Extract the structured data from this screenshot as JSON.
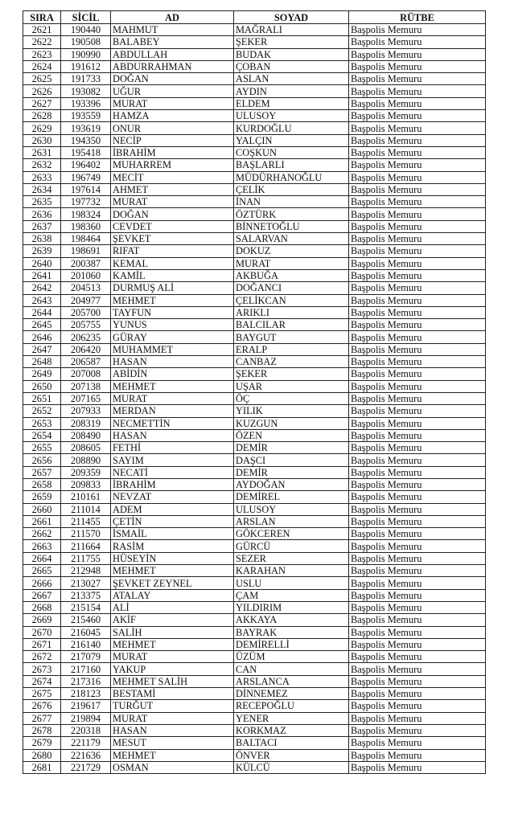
{
  "headers": [
    "SIRA",
    "SİCİL",
    "AD",
    "SOYAD",
    "RÜTBE"
  ],
  "rows": [
    [
      "2621",
      "190440",
      "MAHMUT",
      "MAĞRALI",
      "Başpolis Memuru"
    ],
    [
      "2622",
      "190508",
      "BALABEY",
      "ŞEKER",
      "Başpolis Memuru"
    ],
    [
      "2623",
      "190990",
      "ABDULLAH",
      "BUDAK",
      "Başpolis Memuru"
    ],
    [
      "2624",
      "191612",
      "ABDURRAHMAN",
      "ÇOBAN",
      "Başpolis Memuru"
    ],
    [
      "2625",
      "191733",
      "DOĞAN",
      "ASLAN",
      "Başpolis Memuru"
    ],
    [
      "2626",
      "193082",
      "UĞUR",
      "AYDIN",
      "Başpolis Memuru"
    ],
    [
      "2627",
      "193396",
      "MURAT",
      "ELDEM",
      "Başpolis Memuru"
    ],
    [
      "2628",
      "193559",
      "HAMZA",
      "ULUSOY",
      "Başpolis Memuru"
    ],
    [
      "2629",
      "193619",
      "ONUR",
      "KURDOĞLU",
      "Başpolis Memuru"
    ],
    [
      "2630",
      "194350",
      "NECİP",
      "YALÇIN",
      "Başpolis Memuru"
    ],
    [
      "2631",
      "195418",
      "İBRAHİM",
      "COŞKUN",
      "Başpolis Memuru"
    ],
    [
      "2632",
      "196402",
      "MUHARREM",
      "BAŞLARLI",
      "Başpolis Memuru"
    ],
    [
      "2633",
      "196749",
      "MECİT",
      "MÜDÜRHANOĞLU",
      "Başpolis Memuru"
    ],
    [
      "2634",
      "197614",
      "AHMET",
      "ÇELİK",
      "Başpolis Memuru"
    ],
    [
      "2635",
      "197732",
      "MURAT",
      "İNAN",
      "Başpolis Memuru"
    ],
    [
      "2636",
      "198324",
      "DOĞAN",
      "ÖZTÜRK",
      "Başpolis Memuru"
    ],
    [
      "2637",
      "198360",
      "CEVDET",
      "BİNNETOĞLU",
      "Başpolis Memuru"
    ],
    [
      "2638",
      "198464",
      "ŞEVKET",
      "SALARVAN",
      "Başpolis Memuru"
    ],
    [
      "2639",
      "198691",
      "RIFAT",
      "DOKUZ",
      "Başpolis Memuru"
    ],
    [
      "2640",
      "200387",
      "KEMAL",
      "MURAT",
      "Başpolis Memuru"
    ],
    [
      "2641",
      "201060",
      "KAMİL",
      "AKBUĞA",
      "Başpolis Memuru"
    ],
    [
      "2642",
      "204513",
      "DURMUŞ ALİ",
      "DOĞANCI",
      "Başpolis Memuru"
    ],
    [
      "2643",
      "204977",
      "MEHMET",
      "ÇELİKCAN",
      "Başpolis Memuru"
    ],
    [
      "2644",
      "205700",
      "TAYFUN",
      "ARIKLI",
      "Başpolis Memuru"
    ],
    [
      "2645",
      "205755",
      "YUNUS",
      "BALCILAR",
      "Başpolis Memuru"
    ],
    [
      "2646",
      "206235",
      "GÜRAY",
      "BAYGUT",
      "Başpolis Memuru"
    ],
    [
      "2647",
      "206420",
      "MUHAMMET",
      "ERALP",
      "Başpolis Memuru"
    ],
    [
      "2648",
      "206587",
      "HASAN",
      "CANBAZ",
      "Başpolis Memuru"
    ],
    [
      "2649",
      "207008",
      "ABİDİN",
      "ŞEKER",
      "Başpolis Memuru"
    ],
    [
      "2650",
      "207138",
      "MEHMET",
      "UŞAR",
      "Başpolis Memuru"
    ],
    [
      "2651",
      "207165",
      "MURAT",
      "ÖÇ",
      "Başpolis Memuru"
    ],
    [
      "2652",
      "207933",
      "MERDAN",
      "YILIK",
      "Başpolis Memuru"
    ],
    [
      "2653",
      "208319",
      "NECMETTİN",
      "KUZGUN",
      "Başpolis Memuru"
    ],
    [
      "2654",
      "208490",
      "HASAN",
      "ÖZEN",
      "Başpolis Memuru"
    ],
    [
      "2655",
      "208605",
      "FETHİ",
      "DEMİR",
      "Başpolis Memuru"
    ],
    [
      "2656",
      "208890",
      "SAYIM",
      "DAŞCI",
      "Başpolis Memuru"
    ],
    [
      "2657",
      "209359",
      "NECATİ",
      "DEMİR",
      "Başpolis Memuru"
    ],
    [
      "2658",
      "209833",
      "İBRAHİM",
      "AYDOĞAN",
      "Başpolis Memuru"
    ],
    [
      "2659",
      "210161",
      "NEVZAT",
      "DEMİREL",
      "Başpolis Memuru"
    ],
    [
      "2660",
      "211014",
      "ADEM",
      "ULUSOY",
      "Başpolis Memuru"
    ],
    [
      "2661",
      "211455",
      "ÇETİN",
      "ARSLAN",
      "Başpolis Memuru"
    ],
    [
      "2662",
      "211570",
      "İSMAİL",
      "GÖKCEREN",
      "Başpolis Memuru"
    ],
    [
      "2663",
      "211664",
      "RASİM",
      "GÜRCÜ",
      "Başpolis Memuru"
    ],
    [
      "2664",
      "211755",
      "HÜSEYİN",
      "SEZER",
      "Başpolis Memuru"
    ],
    [
      "2665",
      "212948",
      "MEHMET",
      "KARAHAN",
      "Başpolis Memuru"
    ],
    [
      "2666",
      "213027",
      "ŞEVKET ZEYNEL",
      "USLU",
      "Başpolis Memuru"
    ],
    [
      "2667",
      "213375",
      "ATALAY",
      "ÇAM",
      "Başpolis Memuru"
    ],
    [
      "2668",
      "215154",
      "ALİ",
      "YILDIRIM",
      "Başpolis Memuru"
    ],
    [
      "2669",
      "215460",
      "AKİF",
      "AKKAYA",
      "Başpolis Memuru"
    ],
    [
      "2670",
      "216045",
      "SALİH",
      "BAYRAK",
      "Başpolis Memuru"
    ],
    [
      "2671",
      "216140",
      "MEHMET",
      "DEMİRELLİ",
      "Başpolis Memuru"
    ],
    [
      "2672",
      "217079",
      "MURAT",
      "ÜZÜM",
      "Başpolis Memuru"
    ],
    [
      "2673",
      "217160",
      "YAKUP",
      "CAN",
      "Başpolis Memuru"
    ],
    [
      "2674",
      "217316",
      "MEHMET SALİH",
      "ARSLANCA",
      "Başpolis Memuru"
    ],
    [
      "2675",
      "218123",
      "BESTAMİ",
      "DİNNEMEZ",
      "Başpolis Memuru"
    ],
    [
      "2676",
      "219617",
      "TURĞUT",
      "RECEPOĞLU",
      "Başpolis Memuru"
    ],
    [
      "2677",
      "219894",
      "MURAT",
      "YENER",
      "Başpolis Memuru"
    ],
    [
      "2678",
      "220318",
      "HASAN",
      "KORKMAZ",
      "Başpolis Memuru"
    ],
    [
      "2679",
      "221179",
      "MESUT",
      "BALTACI",
      "Başpolis Memuru"
    ],
    [
      "2680",
      "221636",
      "MEHMET",
      "ÖNVER",
      "Başpolis Memuru"
    ],
    [
      "2681",
      "221729",
      "OSMAN",
      "KÜLCÜ",
      "Başpolis Memuru"
    ]
  ]
}
